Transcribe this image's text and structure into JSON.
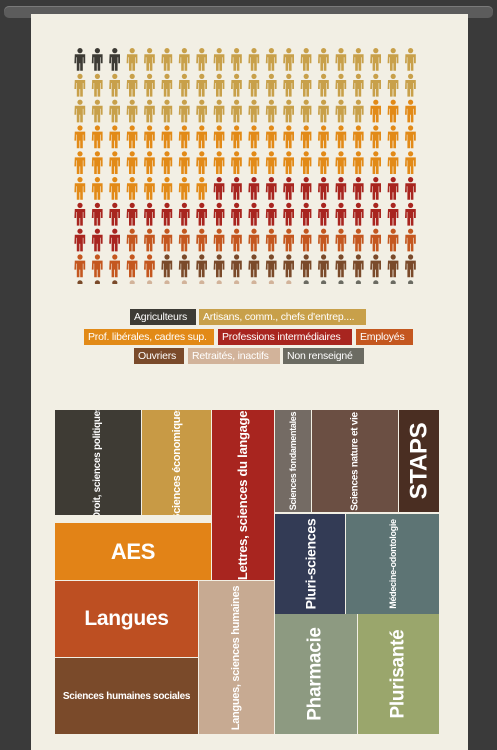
{
  "colors": {
    "page_bg": "#f2efe4",
    "frame": "#3a3a3a"
  },
  "chart_data": [
    {
      "type": "pictogram",
      "columns": 20,
      "rows": 10,
      "unit": "person-icon",
      "counts": [
        {
          "category": "Agriculteurs",
          "value": 3,
          "color": "#3d3b35"
        },
        {
          "category": "Artisans, comm., chefs d'entrep....",
          "value": 54,
          "color": "#c8a04a"
        },
        {
          "category": "Prof. libérales, cadres sup.",
          "value": 51,
          "color": "#e28a17"
        },
        {
          "category": "Professions intermédiaires",
          "value": 35,
          "color": "#a8251f"
        },
        {
          "category": "Employés",
          "value": 22,
          "color": "#c4571f"
        },
        {
          "category": "Ouvriers",
          "value": 18,
          "color": "#7a4a2a"
        },
        {
          "category": "Retraités, inactifs",
          "value": 10,
          "color": "#d2b39a"
        },
        {
          "category": "Non renseigné",
          "value": 7,
          "color": "#6b6b62"
        }
      ]
    },
    {
      "type": "treemap",
      "tiles": [
        {
          "label": "Droit, sciences politiques",
          "color": "#3e3b34"
        },
        {
          "label": "Sciences économiques",
          "color": "#c89a45"
        },
        {
          "label": "Lettres, sciences du langage",
          "color": "#a8251f"
        },
        {
          "label": "Sciences fondamentales",
          "color": "#746b64"
        },
        {
          "label": "Sciences nature et vie",
          "color": "#6b4f43"
        },
        {
          "label": "STAPS",
          "color": "#4a2e22"
        },
        {
          "label": "AES",
          "color": "#e28317"
        },
        {
          "label": "Pluri-sciences",
          "color": "#333b55"
        },
        {
          "label": "Médecine-odontologie",
          "color": "#5d7474"
        },
        {
          "label": "Langues",
          "color": "#bd4f22"
        },
        {
          "label": "Langues, sciences humaines",
          "color": "#c7aa92"
        },
        {
          "label": "Pharmacie",
          "color": "#8d9a81"
        },
        {
          "label": "Plurisanté",
          "color": "#9aa66c"
        },
        {
          "label": "Sciences humaines sociales",
          "color": "#7a4a2a"
        }
      ]
    }
  ]
}
